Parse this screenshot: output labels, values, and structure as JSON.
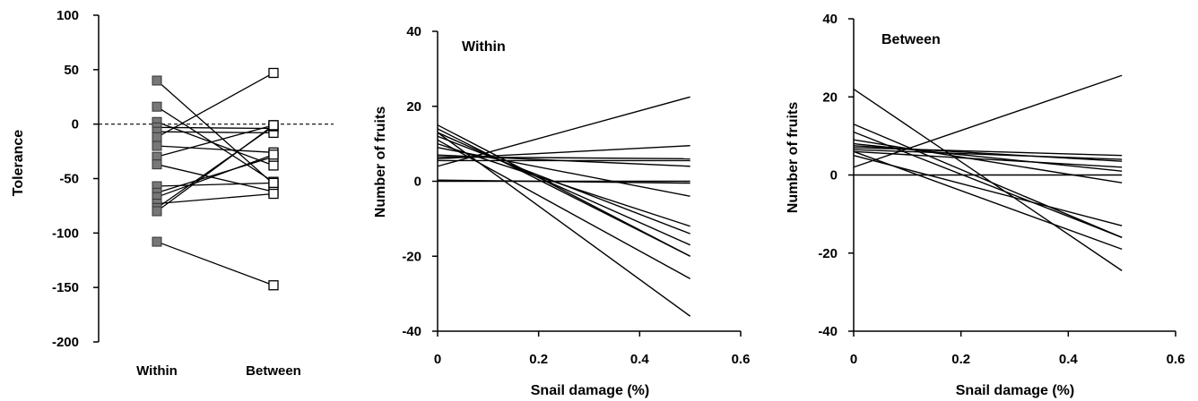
{
  "chart_data": [
    {
      "type": "line",
      "panel": "tolerance",
      "categories": [
        "Within",
        "Between"
      ],
      "ylabel": "Tolerance",
      "ylim": [
        -200,
        100
      ],
      "yticks": [
        100,
        50,
        0,
        -50,
        -100,
        -150,
        -200
      ],
      "reference_line": 0,
      "pairs": [
        [
          40,
          -55
        ],
        [
          16,
          -53
        ],
        [
          2,
          -38
        ],
        [
          -3,
          -4
        ],
        [
          -7,
          -8
        ],
        [
          -12,
          47
        ],
        [
          -20,
          -26
        ],
        [
          -30,
          -1
        ],
        [
          -37,
          -62
        ],
        [
          -57,
          -54
        ],
        [
          -63,
          -30
        ],
        [
          -67,
          -28
        ],
        [
          -73,
          -64
        ],
        [
          -77,
          -2
        ],
        [
          -80,
          -1
        ],
        [
          -108,
          -148
        ]
      ]
    },
    {
      "type": "line",
      "panel": "within",
      "annotation": "Within",
      "xlabel": "Snail damage (%)",
      "ylabel": "Number of fruits",
      "xlim": [
        0,
        0.6
      ],
      "ylim": [
        -40,
        40
      ],
      "xticks": [
        "0",
        "0.2",
        "0.4",
        "0.6"
      ],
      "yticks": [
        "40",
        "20",
        "0",
        "-20",
        "-40"
      ],
      "lines": [
        [
          0,
          4,
          0.5,
          22.5
        ],
        [
          0,
          6,
          0.5,
          9.5
        ],
        [
          0,
          6.5,
          0.5,
          6
        ],
        [
          0,
          5.5,
          0.5,
          5.5
        ],
        [
          0,
          7,
          0.5,
          4
        ],
        [
          0,
          0,
          0.5,
          0
        ],
        [
          0,
          0.3,
          0.5,
          -0.5
        ],
        [
          0,
          9,
          0.5,
          -4
        ],
        [
          0,
          10,
          0.5,
          -12
        ],
        [
          0,
          12,
          0.5,
          -14
        ],
        [
          0,
          13,
          0.5,
          -17
        ],
        [
          0,
          14,
          0.5,
          -20
        ],
        [
          0,
          15,
          0.5,
          -20
        ],
        [
          0,
          11,
          0.5,
          -26
        ],
        [
          0,
          13,
          0.5,
          -36
        ]
      ]
    },
    {
      "type": "line",
      "panel": "between",
      "annotation": "Between",
      "xlabel": "Snail damage (%)",
      "ylabel": "Number of fruits",
      "xlim": [
        0,
        0.6
      ],
      "ylim": [
        -40,
        40
      ],
      "xticks": [
        "0",
        "0.2",
        "0.4",
        "0.6"
      ],
      "yticks": [
        "40",
        "20",
        "0",
        "-20",
        "-40"
      ],
      "lines": [
        [
          0,
          2,
          0.5,
          25.5
        ],
        [
          0,
          7,
          0.5,
          5
        ],
        [
          0,
          6.5,
          0.5,
          4
        ],
        [
          0,
          7.5,
          0.5,
          3.5
        ],
        [
          0,
          6,
          0.5,
          2
        ],
        [
          0,
          0,
          0.5,
          0
        ],
        [
          0,
          8,
          0.5,
          1
        ],
        [
          0,
          9,
          0.5,
          -2
        ],
        [
          0,
          5,
          0.5,
          -13
        ],
        [
          0,
          13,
          0.5,
          -16
        ],
        [
          0,
          11,
          0.5,
          -16
        ],
        [
          0,
          6,
          0.5,
          -19
        ],
        [
          0,
          22,
          0.5,
          -24.5
        ]
      ]
    }
  ]
}
